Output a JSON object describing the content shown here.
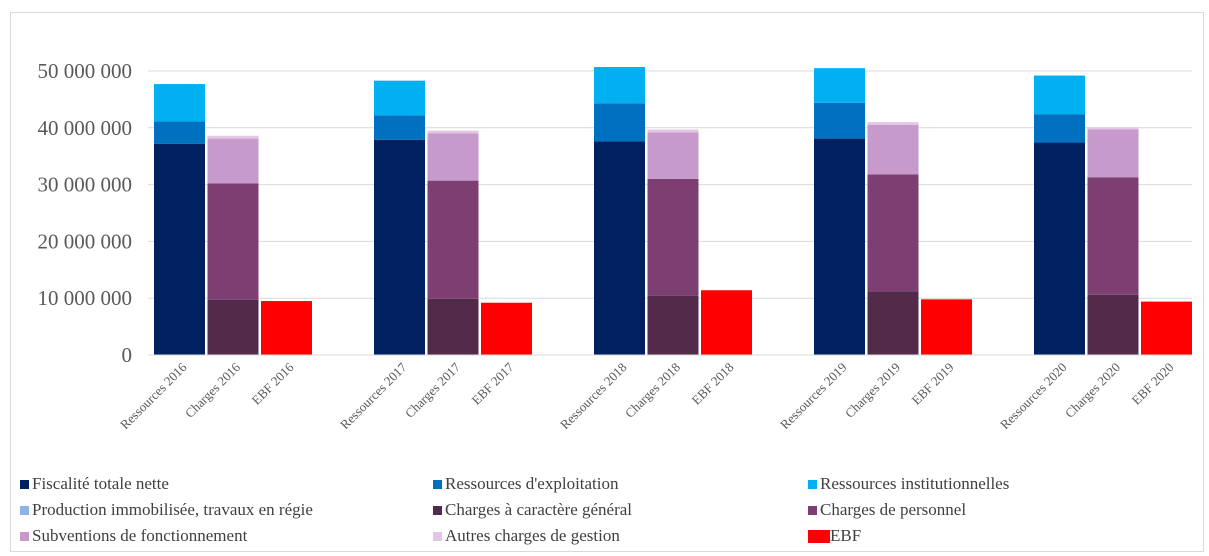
{
  "chart_data": {
    "type": "bar",
    "stacked": true,
    "ylim": [
      0,
      50000000
    ],
    "yticks": [
      0,
      10000000,
      20000000,
      30000000,
      40000000,
      50000000
    ],
    "ytick_labels": [
      "0",
      "10 000 000",
      "20 000 000",
      "30 000 000",
      "40 000 000",
      "50 000 000"
    ],
    "grid": true,
    "legend_position": "bottom",
    "groups": [
      {
        "name": "2016",
        "bars": [
          {
            "label": "Ressources 2016",
            "segments": [
              37200000,
              3900000,
              6600000,
              0,
              0,
              0,
              0,
              0,
              0
            ]
          },
          {
            "label": "Charges 2016",
            "segments": [
              0,
              0,
              0,
              0,
              9700000,
              20500000,
              7900000,
              500000,
              0
            ]
          },
          {
            "label": "EBF 2016",
            "segments": [
              0,
              0,
              0,
              0,
              0,
              0,
              0,
              0,
              9500000
            ]
          }
        ]
      },
      {
        "name": "2017",
        "bars": [
          {
            "label": "Ressources 2017",
            "segments": [
              37900000,
              4300000,
              6100000,
              0,
              0,
              0,
              0,
              0,
              0
            ]
          },
          {
            "label": "Charges 2017",
            "segments": [
              0,
              0,
              0,
              0,
              9900000,
              20800000,
              8300000,
              500000,
              0
            ]
          },
          {
            "label": "EBF 2017",
            "segments": [
              0,
              0,
              0,
              0,
              0,
              0,
              0,
              0,
              9200000
            ]
          }
        ]
      },
      {
        "name": "2018",
        "bars": [
          {
            "label": "Ressources 2018",
            "segments": [
              37600000,
              6700000,
              6400000,
              0,
              0,
              0,
              0,
              0,
              0
            ]
          },
          {
            "label": "Charges 2018",
            "segments": [
              0,
              0,
              0,
              0,
              10400000,
              20600000,
              8200000,
              500000,
              0
            ]
          },
          {
            "label": "EBF 2018",
            "segments": [
              0,
              0,
              0,
              0,
              0,
              0,
              0,
              0,
              11400000
            ]
          }
        ]
      },
      {
        "name": "2019",
        "bars": [
          {
            "label": "Ressources 2019",
            "segments": [
              38100000,
              6300000,
              6100000,
              0,
              0,
              0,
              0,
              0,
              0
            ]
          },
          {
            "label": "Charges 2019",
            "segments": [
              0,
              0,
              0,
              0,
              11200000,
              20600000,
              8700000,
              500000,
              0
            ]
          },
          {
            "label": "EBF 2019",
            "segments": [
              0,
              0,
              0,
              0,
              0,
              0,
              0,
              0,
              9800000
            ]
          }
        ]
      },
      {
        "name": "2020",
        "bars": [
          {
            "label": "Ressources 2020",
            "segments": [
              37400000,
              5000000,
              6800000,
              0,
              0,
              0,
              0,
              0,
              0
            ]
          },
          {
            "label": "Charges 2020",
            "segments": [
              0,
              0,
              0,
              0,
              10600000,
              20700000,
              8400000,
              400000,
              0
            ]
          },
          {
            "label": "EBF 2020",
            "segments": [
              0,
              0,
              0,
              0,
              0,
              0,
              0,
              0,
              9400000
            ]
          }
        ]
      }
    ],
    "series": [
      {
        "name": "Fiscalité totale nette",
        "color": "#002060"
      },
      {
        "name": "Ressources d'exploitation",
        "color": "#0070C0"
      },
      {
        "name": "Ressources institutionnelles",
        "color": "#00B0F0"
      },
      {
        "name": "Production immobilisée, travaux en régie",
        "color": "#8DB4E2"
      },
      {
        "name": "Charges à caractère général",
        "color": "#522A4A"
      },
      {
        "name": "Charges de personnel",
        "color": "#7D3F72"
      },
      {
        "name": "Subventions de fonctionnement",
        "color": "#C69ACB"
      },
      {
        "name": "Autres charges de gestion",
        "color": "#E3C5E6"
      },
      {
        "name": "EBF",
        "color": "#FF0000"
      }
    ]
  }
}
